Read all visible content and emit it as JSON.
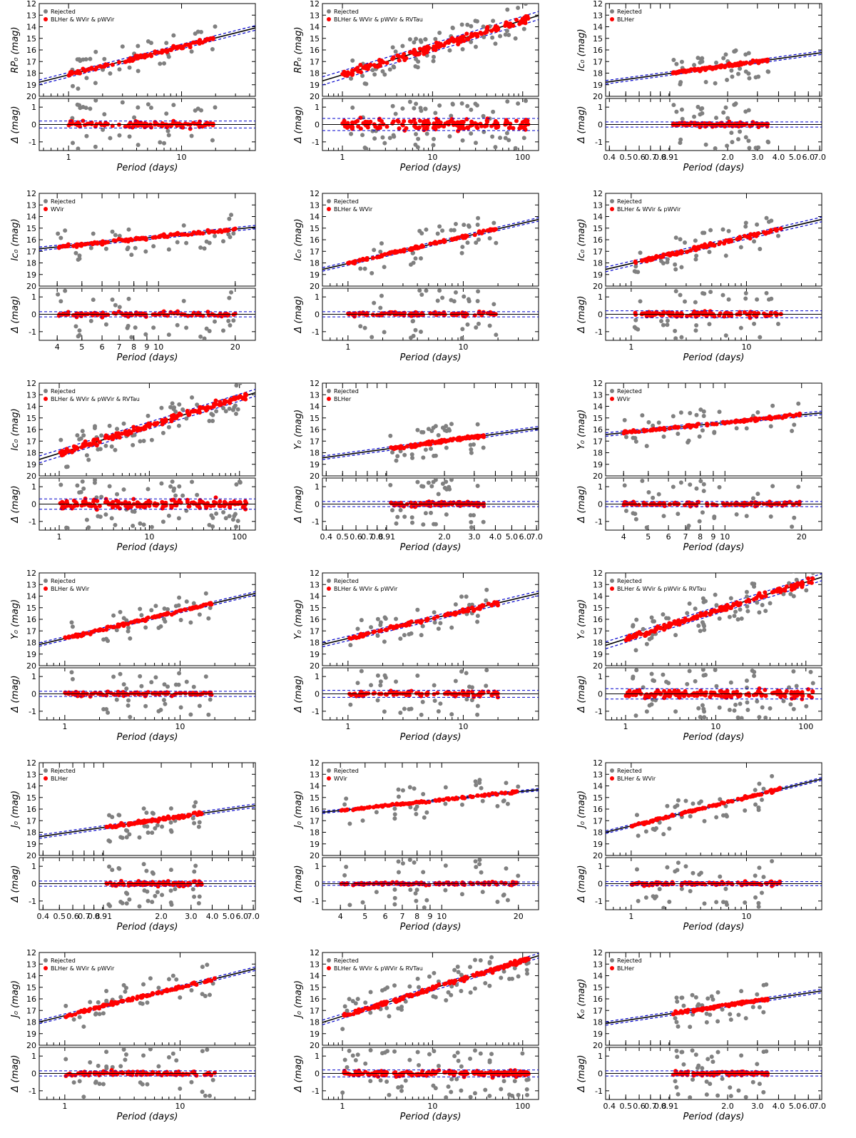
{
  "figure": {
    "xlabel": "Period (days)",
    "resid_ylabel": "Δ (mag)",
    "legend_rejected": "Rejected",
    "colors": {
      "rejected": "#808080",
      "accepted": "#ff0000",
      "fit": "#000000",
      "bounds": "#0000cc"
    }
  },
  "chart_data": [
    {
      "type": "scatter",
      "band": "RP",
      "ylabel": "RP₀ (mag)",
      "legend_selected": "BLHer & WVir & pWVir",
      "xscale": "log",
      "xlim": [
        0.55,
        45
      ],
      "xticks": [
        1,
        10
      ],
      "xticklabels": [
        "1",
        "10"
      ],
      "ylim": [
        20,
        12
      ],
      "yticks": [
        12,
        13,
        14,
        15,
        16,
        17,
        18,
        19,
        20
      ],
      "resid_ylim": [
        -1.5,
        1.5
      ],
      "resid_yticks": [
        1,
        0,
        -1
      ],
      "fit": {
        "intercept": 18.15,
        "slope": -2.45,
        "sigma": 0.2
      },
      "period_range": [
        1,
        20
      ]
    },
    {
      "type": "scatter",
      "band": "RP",
      "ylabel": "RP₀ (mag)",
      "legend_selected": "BLHer & WVir & pWVir & RVTau",
      "xscale": "log",
      "xlim": [
        0.6,
        150
      ],
      "xticks": [
        1,
        10,
        100
      ],
      "xticklabels": [
        "1",
        "10",
        "100"
      ],
      "ylim": [
        20,
        12
      ],
      "yticks": [
        12,
        13,
        14,
        15,
        16,
        17,
        18,
        19,
        20
      ],
      "resid_ylim": [
        -1.5,
        1.5
      ],
      "resid_yticks": [
        1,
        0,
        -1
      ],
      "fit": {
        "intercept": 18.15,
        "slope": -2.35,
        "sigma": 0.35
      },
      "period_range": [
        1,
        120
      ]
    },
    {
      "type": "scatter",
      "band": "Ic",
      "ylabel": "Ic₀ (mag)",
      "legend_selected": "BLHer",
      "xscale": "log",
      "xlim": [
        0.38,
        7.2
      ],
      "xticks": [
        0.4,
        0.5,
        0.6,
        0.7,
        0.8,
        0.91,
        2.0,
        3.0,
        4.0,
        5.0,
        6.0,
        7.0
      ],
      "xticklabels": [
        "0.4",
        "0.5",
        "0.6",
        "0.7",
        "0.8",
        "0.91",
        "2.0",
        "3.0",
        "4.0",
        "5.0",
        "6.0",
        "7.0"
      ],
      "ylim": [
        20,
        12
      ],
      "yticks": [
        12,
        13,
        14,
        15,
        16,
        17,
        18,
        19,
        20
      ],
      "resid_ylim": [
        -1.5,
        1.5
      ],
      "resid_yticks": [
        1,
        0,
        -1
      ],
      "fit": {
        "intercept": 17.95,
        "slope": -2.0,
        "sigma": 0.15
      },
      "period_range": [
        0.95,
        3.5
      ]
    },
    {
      "type": "scatter",
      "band": "Ic",
      "ylabel": "Ic₀ (mag)",
      "legend_selected": "WVir",
      "xscale": "log",
      "xlim": [
        3.4,
        24
      ],
      "xticks": [
        4,
        5,
        6,
        7,
        8,
        9,
        10,
        20
      ],
      "xticklabels": [
        "4",
        "5",
        "6",
        "7",
        "8",
        "9",
        "10",
        "20"
      ],
      "ylim": [
        20,
        12
      ],
      "yticks": [
        12,
        13,
        14,
        15,
        16,
        17,
        18,
        19,
        20
      ],
      "resid_ylim": [
        -1.5,
        1.5
      ],
      "resid_yticks": [
        1,
        0,
        -1
      ],
      "fit": {
        "intercept": 17.95,
        "slope": -2.2,
        "sigma": 0.15
      },
      "period_range": [
        4,
        20
      ]
    },
    {
      "type": "scatter",
      "band": "Ic",
      "ylabel": "Ic₀ (mag)",
      "legend_selected": "BLHer & WVir",
      "xscale": "log",
      "xlim": [
        0.6,
        45
      ],
      "xticks": [
        1,
        10
      ],
      "xticklabels": [
        "1",
        "10"
      ],
      "ylim": [
        20,
        12
      ],
      "yticks": [
        12,
        13,
        14,
        15,
        16,
        17,
        18,
        19,
        20
      ],
      "resid_ylim": [
        -1.5,
        1.5
      ],
      "resid_yticks": [
        1,
        0,
        -1
      ],
      "fit": {
        "intercept": 18.05,
        "slope": -2.3,
        "sigma": 0.15
      },
      "period_range": [
        1,
        20
      ]
    },
    {
      "type": "scatter",
      "band": "Ic",
      "ylabel": "Ic₀ (mag)",
      "legend_selected": "BLHer & WVir & pWVir",
      "xscale": "log",
      "xlim": [
        0.6,
        45
      ],
      "xticks": [
        1,
        10
      ],
      "xticklabels": [
        "1",
        "10"
      ],
      "ylim": [
        20,
        12
      ],
      "yticks": [
        12,
        13,
        14,
        15,
        16,
        17,
        18,
        19,
        20
      ],
      "resid_ylim": [
        -1.5,
        1.5
      ],
      "resid_yticks": [
        1,
        0,
        -1
      ],
      "fit": {
        "intercept": 18.05,
        "slope": -2.3,
        "sigma": 0.2
      },
      "period_range": [
        1,
        20
      ]
    },
    {
      "type": "scatter",
      "band": "Ic",
      "ylabel": "Ic₀ (mag)",
      "legend_selected": "BLHer & WVir & pWVir & RVTau",
      "xscale": "log",
      "xlim": [
        0.6,
        150
      ],
      "xticks": [
        1,
        10,
        100
      ],
      "xticklabels": [
        "1",
        "10",
        "100"
      ],
      "ylim": [
        20,
        12
      ],
      "yticks": [
        12,
        13,
        14,
        15,
        16,
        17,
        18,
        19,
        20
      ],
      "resid_ylim": [
        -1.5,
        1.5
      ],
      "resid_yticks": [
        1,
        0,
        -1
      ],
      "fit": {
        "intercept": 18.05,
        "slope": -2.4,
        "sigma": 0.3
      },
      "period_range": [
        1,
        120
      ]
    },
    {
      "type": "scatter",
      "band": "Y",
      "ylabel": "Y₀ (mag)",
      "legend_selected": "BLHer",
      "xscale": "log",
      "xlim": [
        0.38,
        7.2
      ],
      "xticks": [
        0.4,
        0.5,
        0.6,
        0.7,
        0.8,
        0.91,
        2.0,
        3.0,
        4.0,
        5.0,
        6.0,
        7.0
      ],
      "xticklabels": [
        "0.4",
        "0.5",
        "0.6",
        "0.7",
        "0.8",
        "0.91",
        "2.0",
        "3.0",
        "4.0",
        "5.0",
        "6.0",
        "7.0"
      ],
      "ylim": [
        20,
        12
      ],
      "yticks": [
        12,
        13,
        14,
        15,
        16,
        17,
        18,
        19,
        20
      ],
      "resid_ylim": [
        -1.5,
        1.5
      ],
      "resid_yticks": [
        1,
        0,
        -1
      ],
      "fit": {
        "intercept": 17.6,
        "slope": -2.0,
        "sigma": 0.15
      },
      "period_range": [
        0.95,
        3.5
      ]
    },
    {
      "type": "scatter",
      "band": "Y",
      "ylabel": "Y₀ (mag)",
      "legend_selected": "WVir",
      "xscale": "log",
      "xlim": [
        3.4,
        24
      ],
      "xticks": [
        4,
        5,
        6,
        7,
        8,
        9,
        10,
        20
      ],
      "xticklabels": [
        "4",
        "5",
        "6",
        "7",
        "8",
        "9",
        "10",
        "20"
      ],
      "ylim": [
        20,
        12
      ],
      "yticks": [
        12,
        13,
        14,
        15,
        16,
        17,
        18,
        19,
        20
      ],
      "resid_ylim": [
        -1.5,
        1.5
      ],
      "resid_yticks": [
        1,
        0,
        -1
      ],
      "fit": {
        "intercept": 17.6,
        "slope": -2.2,
        "sigma": 0.15
      },
      "period_range": [
        4,
        20
      ]
    },
    {
      "type": "scatter",
      "band": "Y",
      "ylabel": "Y₀ (mag)",
      "legend_selected": "BLHer & WVir",
      "xscale": "log",
      "xlim": [
        0.6,
        45
      ],
      "xticks": [
        1,
        10
      ],
      "xticklabels": [
        "1",
        "10"
      ],
      "ylim": [
        20,
        12
      ],
      "yticks": [
        12,
        13,
        14,
        15,
        16,
        17,
        18,
        19,
        20
      ],
      "resid_ylim": [
        -1.5,
        1.5
      ],
      "resid_yticks": [
        1,
        0,
        -1
      ],
      "fit": {
        "intercept": 17.65,
        "slope": -2.35,
        "sigma": 0.15
      },
      "period_range": [
        1,
        20
      ]
    },
    {
      "type": "scatter",
      "band": "Y",
      "ylabel": "Y₀ (mag)",
      "legend_selected": "BLHer & WVir & pWVir",
      "xscale": "log",
      "xlim": [
        0.6,
        45
      ],
      "xticks": [
        1,
        10
      ],
      "xticklabels": [
        "1",
        "10"
      ],
      "ylim": [
        20,
        12
      ],
      "yticks": [
        12,
        13,
        14,
        15,
        16,
        17,
        18,
        19,
        20
      ],
      "resid_ylim": [
        -1.5,
        1.5
      ],
      "resid_yticks": [
        1,
        0,
        -1
      ],
      "fit": {
        "intercept": 17.65,
        "slope": -2.35,
        "sigma": 0.2
      },
      "period_range": [
        1,
        20
      ]
    },
    {
      "type": "scatter",
      "band": "Y",
      "ylabel": "Y₀ (mag)",
      "legend_selected": "BLHer & WVir & pWVir & RVTau",
      "xscale": "log",
      "xlim": [
        0.6,
        150
      ],
      "xticks": [
        1,
        10,
        100
      ],
      "xticklabels": [
        "1",
        "10",
        "100"
      ],
      "ylim": [
        20,
        12
      ],
      "yticks": [
        12,
        13,
        14,
        15,
        16,
        17,
        18,
        19,
        20
      ],
      "resid_ylim": [
        -1.5,
        1.5
      ],
      "resid_yticks": [
        1,
        0,
        -1
      ],
      "fit": {
        "intercept": 17.7,
        "slope": -2.45,
        "sigma": 0.3
      },
      "period_range": [
        1,
        120
      ]
    },
    {
      "type": "scatter",
      "band": "J",
      "ylabel": "J₀ (mag)",
      "legend_selected": "BLHer",
      "xscale": "log",
      "xlim": [
        0.38,
        7.2
      ],
      "xticks": [
        0.4,
        0.5,
        0.6,
        0.7,
        0.8,
        0.91,
        2.0,
        3.0,
        4.0,
        5.0,
        6.0,
        7.0
      ],
      "xticklabels": [
        "0.4",
        "0.5",
        "0.6",
        "0.7",
        "0.8",
        "0.91",
        "2.0",
        "3.0",
        "4.0",
        "5.0",
        "6.0",
        "7.0"
      ],
      "ylim": [
        20,
        12
      ],
      "yticks": [
        12,
        13,
        14,
        15,
        16,
        17,
        18,
        19,
        20
      ],
      "resid_ylim": [
        -1.5,
        1.5
      ],
      "resid_yticks": [
        1,
        0,
        -1
      ],
      "fit": {
        "intercept": 17.5,
        "slope": -2.1,
        "sigma": 0.15
      },
      "period_range": [
        0.95,
        3.5
      ]
    },
    {
      "type": "scatter",
      "band": "J",
      "ylabel": "J₀ (mag)",
      "legend_selected": "WVir",
      "xscale": "log",
      "xlim": [
        3.4,
        24
      ],
      "xticks": [
        4,
        5,
        6,
        7,
        8,
        9,
        10,
        20
      ],
      "xticklabels": [
        "4",
        "5",
        "6",
        "7",
        "8",
        "9",
        "10",
        "20"
      ],
      "ylim": [
        20,
        12
      ],
      "yticks": [
        12,
        13,
        14,
        15,
        16,
        17,
        18,
        19,
        20
      ],
      "resid_ylim": [
        -1.5,
        1.5
      ],
      "resid_yticks": [
        1,
        0,
        -1
      ],
      "fit": {
        "intercept": 17.5,
        "slope": -2.3,
        "sigma": 0.1
      },
      "period_range": [
        4,
        20
      ]
    },
    {
      "type": "scatter",
      "band": "J",
      "ylabel": "J₀ (mag)",
      "legend_selected": "BLHer & WVir",
      "xscale": "log",
      "xlim": [
        0.6,
        45
      ],
      "xticks": [
        1,
        10
      ],
      "xticklabels": [
        "1",
        "10"
      ],
      "ylim": [
        20,
        12
      ],
      "yticks": [
        12,
        13,
        14,
        15,
        16,
        17,
        18,
        19,
        20
      ],
      "resid_ylim": [
        -1.5,
        1.5
      ],
      "resid_yticks": [
        1,
        0,
        -1
      ],
      "fit": {
        "intercept": 17.45,
        "slope": -2.45,
        "sigma": 0.12
      },
      "period_range": [
        1,
        20
      ]
    },
    {
      "type": "scatter",
      "band": "J",
      "ylabel": "J₀ (mag)",
      "legend_selected": "BLHer & WVir & pWVir",
      "xscale": "log",
      "xlim": [
        0.6,
        45
      ],
      "xticks": [
        1,
        10
      ],
      "xticklabels": [
        "1",
        "10"
      ],
      "ylim": [
        20,
        12
      ],
      "yticks": [
        12,
        13,
        14,
        15,
        16,
        17,
        18,
        19,
        20
      ],
      "resid_ylim": [
        -1.5,
        1.5
      ],
      "resid_yticks": [
        1,
        0,
        -1
      ],
      "fit": {
        "intercept": 17.45,
        "slope": -2.45,
        "sigma": 0.15
      },
      "period_range": [
        1,
        20
      ]
    },
    {
      "type": "scatter",
      "band": "J",
      "ylabel": "J₀ (mag)",
      "legend_selected": "BLHer & WVir & pWVir & RVTau",
      "xscale": "log",
      "xlim": [
        0.6,
        150
      ],
      "xticks": [
        1,
        10,
        100
      ],
      "xticklabels": [
        "1",
        "10",
        "100"
      ],
      "ylim": [
        20,
        12
      ],
      "yticks": [
        12,
        13,
        14,
        15,
        16,
        17,
        18,
        19,
        20
      ],
      "resid_ylim": [
        -1.5,
        1.5
      ],
      "resid_yticks": [
        1,
        0,
        -1
      ],
      "fit": {
        "intercept": 17.5,
        "slope": -2.4,
        "sigma": 0.2
      },
      "period_range": [
        1,
        120
      ]
    },
    {
      "type": "scatter",
      "band": "K",
      "ylabel": "K₀ (mag)",
      "legend_selected": "BLHer",
      "xscale": "log",
      "xlim": [
        0.38,
        7.2
      ],
      "xticks": [
        0.4,
        0.5,
        0.6,
        0.7,
        0.8,
        0.91,
        2.0,
        3.0,
        4.0,
        5.0,
        6.0,
        7.0
      ],
      "xticklabels": [
        "0.4",
        "0.5",
        "0.6",
        "0.7",
        "0.8",
        "0.91",
        "2.0",
        "3.0",
        "4.0",
        "5.0",
        "6.0",
        "7.0"
      ],
      "ylim": [
        20,
        12
      ],
      "yticks": [
        12,
        13,
        14,
        15,
        16,
        17,
        18,
        19,
        20
      ],
      "resid_ylim": [
        -1.5,
        1.5
      ],
      "resid_yticks": [
        1,
        0,
        -1
      ],
      "fit": {
        "intercept": 17.2,
        "slope": -2.2,
        "sigma": 0.15
      },
      "period_range": [
        0.95,
        3.5
      ]
    }
  ]
}
